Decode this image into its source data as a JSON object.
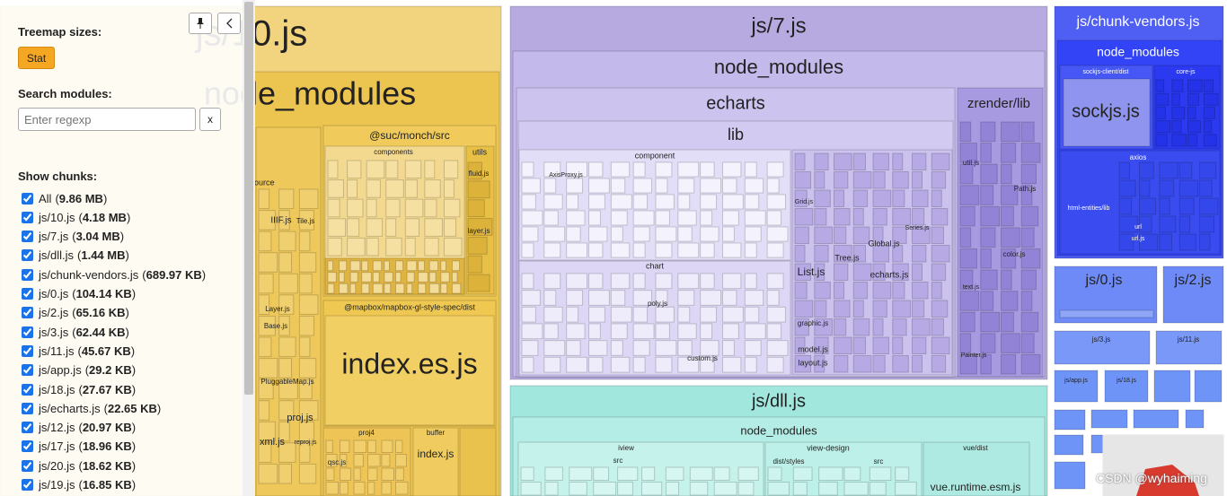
{
  "sidebar": {
    "treemap_sizes_label": "Treemap sizes:",
    "size_button": "Stat",
    "search_label": "Search modules:",
    "search_placeholder": "Enter regexp",
    "clear_button": "x",
    "show_chunks_label": "Show chunks:",
    "chunks": [
      {
        "name": "All",
        "size": "9.86 MB"
      },
      {
        "name": "js/10.js",
        "size": "4.18 MB"
      },
      {
        "name": "js/7.js",
        "size": "3.04 MB"
      },
      {
        "name": "js/dll.js",
        "size": "1.44 MB"
      },
      {
        "name": "js/chunk-vendors.js",
        "size": "689.97 KB"
      },
      {
        "name": "js/0.js",
        "size": "104.14 KB"
      },
      {
        "name": "js/2.js",
        "size": "65.16 KB"
      },
      {
        "name": "js/3.js",
        "size": "62.44 KB"
      },
      {
        "name": "js/11.js",
        "size": "45.67 KB"
      },
      {
        "name": "js/app.js",
        "size": "29.2 KB"
      },
      {
        "name": "js/18.js",
        "size": "27.67 KB"
      },
      {
        "name": "js/echarts.js",
        "size": "22.65 KB"
      },
      {
        "name": "js/12.js",
        "size": "20.97 KB"
      },
      {
        "name": "js/17.js",
        "size": "18.96 KB"
      },
      {
        "name": "js/20.js",
        "size": "18.62 KB"
      },
      {
        "name": "js/19.js",
        "size": "16.85 KB"
      }
    ]
  },
  "treemap": {
    "js10": "js/10.js",
    "js10_nm": "node_modules",
    "suc": "@suc/monch/src",
    "components10": "components",
    "utils": "utils",
    "fluid": "fluid.js",
    "layer": "layer.js",
    "iiif": "IIIF.js",
    "tile": "Tile.js",
    "source": "source",
    "mapbox": "@mapbox/mapbox-gl-style-spec/dist",
    "index_es": "index.es.js",
    "layerjs": "Layer.js",
    "base": "Base.js",
    "pluggable": "PluggableMap.js",
    "proj": "proj.js",
    "xml": "xml.js",
    "reproj": "reproj.js",
    "proj4": "proj4",
    "buffer": "buffer",
    "indexjs": "index.js",
    "qsc": "qsc.js",
    "js7": "js/7.js",
    "js7_nm": "node_modules",
    "echarts": "echarts",
    "lib": "lib",
    "zrender": "zrender/lib",
    "component": "component",
    "axisproxy": "AxisProxy.js",
    "chart": "chart",
    "poly": "poly.js",
    "custom": "custom.js",
    "grid": "Grid.js",
    "list": "List.js",
    "tree": "Tree.js",
    "global": "Global.js",
    "series": "Series.js",
    "echartsjs": "echarts.js",
    "graphic": "graphic.js",
    "model": "model.js",
    "layout": "layout.js",
    "util": "util.js",
    "path": "Path.js",
    "color": "color.js",
    "text": "text.js",
    "painter": "Painter.js",
    "cv": "js/chunk-vendors.js",
    "cv_nm": "node_modules",
    "sockdist": "sockjs-client/dist",
    "corejs": "core-js",
    "sockjs": "sockjs.js",
    "axios": "axios",
    "htmlent": "html-entities/lib",
    "url": "url",
    "urljs": "url.js",
    "js0": "js/0.js",
    "js2": "js/2.js",
    "js3": "js/3.js",
    "js11": "js/11.js",
    "app": "js/app.js",
    "js18": "js/18.js",
    "dll": "js/dll.js",
    "dll_nm": "node_modules",
    "iview": "iview",
    "src1": "src",
    "viewdesign": "view-design",
    "diststyles": "dist/styles",
    "src2": "src",
    "vuedist": "vue/dist",
    "vueruntime": "vue.runtime.esm.js"
  },
  "watermark": "CSDN @wyhaiming"
}
